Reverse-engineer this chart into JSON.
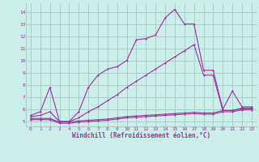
{
  "xlabel": "Windchill (Refroidissement éolien,°C)",
  "bg_color": "#cceee8",
  "grid_color": "#aacccc",
  "line_color": "#993399",
  "xlim": [
    -0.5,
    23.5
  ],
  "ylim": [
    4.6,
    14.7
  ],
  "xticks": [
    0,
    1,
    2,
    3,
    4,
    5,
    6,
    7,
    8,
    9,
    10,
    11,
    12,
    13,
    14,
    15,
    16,
    17,
    18,
    19,
    20,
    21,
    22,
    23
  ],
  "yticks": [
    5,
    6,
    7,
    8,
    9,
    10,
    11,
    12,
    13,
    14
  ],
  "series1_x": [
    0,
    1,
    2,
    3,
    4,
    5,
    6,
    7,
    8,
    9,
    10,
    11,
    12,
    13,
    14,
    15,
    16,
    17,
    18,
    19,
    20,
    21,
    22,
    23
  ],
  "series1_y": [
    5.5,
    5.8,
    7.8,
    5.0,
    5.0,
    5.8,
    7.8,
    8.8,
    9.3,
    9.5,
    10.0,
    11.7,
    11.8,
    12.1,
    13.5,
    14.2,
    13.0,
    13.0,
    9.2,
    9.2,
    6.0,
    7.5,
    6.2,
    6.2
  ],
  "series2_x": [
    0,
    1,
    2,
    3,
    4,
    5,
    6,
    7,
    8,
    9,
    10,
    11,
    12,
    13,
    14,
    15,
    16,
    17,
    18,
    19,
    20,
    21,
    22,
    23
  ],
  "series2_y": [
    5.4,
    5.5,
    5.8,
    5.0,
    5.0,
    5.3,
    5.8,
    6.2,
    6.7,
    7.2,
    7.8,
    8.3,
    8.8,
    9.3,
    9.8,
    10.3,
    10.8,
    11.3,
    8.8,
    8.8,
    5.9,
    5.9,
    6.1,
    6.1
  ],
  "series3_x": [
    0,
    1,
    2,
    3,
    4,
    5,
    6,
    7,
    8,
    9,
    10,
    11,
    12,
    13,
    14,
    15,
    16,
    17,
    18,
    19,
    20,
    21,
    22,
    23
  ],
  "series3_y": [
    5.25,
    5.25,
    5.25,
    4.95,
    4.95,
    5.05,
    5.1,
    5.15,
    5.2,
    5.3,
    5.4,
    5.45,
    5.5,
    5.55,
    5.6,
    5.65,
    5.7,
    5.75,
    5.7,
    5.7,
    5.9,
    5.9,
    6.05,
    6.05
  ],
  "series4_x": [
    0,
    1,
    2,
    3,
    4,
    5,
    6,
    7,
    8,
    9,
    10,
    11,
    12,
    13,
    14,
    15,
    16,
    17,
    18,
    19,
    20,
    21,
    22,
    23
  ],
  "series4_y": [
    5.15,
    5.15,
    5.15,
    4.85,
    4.85,
    4.95,
    5.0,
    5.05,
    5.1,
    5.2,
    5.3,
    5.35,
    5.4,
    5.45,
    5.5,
    5.55,
    5.6,
    5.65,
    5.6,
    5.6,
    5.8,
    5.8,
    5.95,
    5.95
  ]
}
